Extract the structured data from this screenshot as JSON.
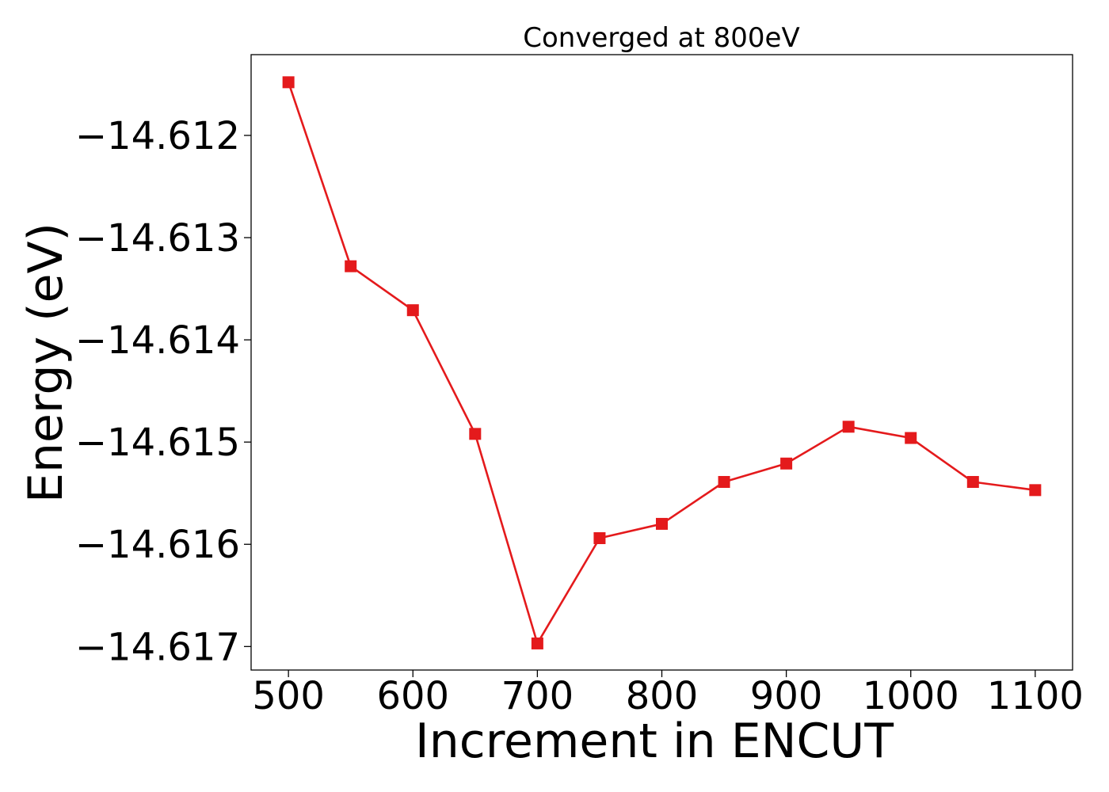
{
  "chart_data": {
    "type": "line",
    "title": "Converged at 800eV",
    "xlabel": "Increment in ENCUT",
    "ylabel": "Energy (eV)",
    "x": [
      500,
      550,
      600,
      650,
      700,
      750,
      800,
      850,
      900,
      950,
      1000,
      1050,
      1100
    ],
    "series": [
      {
        "values": [
          -14.61148,
          -14.61328,
          -14.61371,
          -14.61492,
          -14.61697,
          -14.61594,
          -14.6158,
          -14.61539,
          -14.61521,
          -14.61485,
          -14.61496,
          -14.61539,
          -14.61547
        ],
        "color": "#e41a1c",
        "marker": "square"
      }
    ],
    "xlim": [
      470,
      1130
    ],
    "ylim": [
      -14.61723,
      -14.61121
    ],
    "xticks": [
      500,
      600,
      700,
      800,
      900,
      1000,
      1100
    ],
    "yticks": [
      -14.612,
      -14.613,
      -14.614,
      -14.615,
      -14.616,
      -14.617
    ],
    "ytick_labels": [
      "−14.612",
      "−14.613",
      "−14.614",
      "−14.615",
      "−14.616",
      "−14.617"
    ],
    "grid": false,
    "legend": "none"
  }
}
